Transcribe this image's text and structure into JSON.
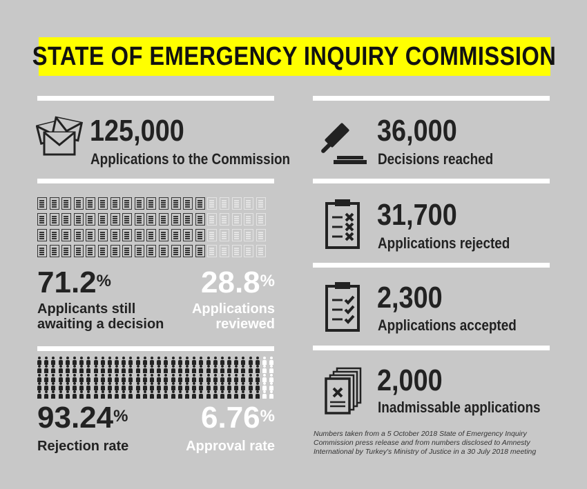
{
  "title": "STATE OF EMERGENCY INQUIRY COMMISSION",
  "left": {
    "applications": {
      "value": "125,000",
      "label": "Applications to the Commission",
      "icon": "envelopes-icon"
    },
    "pending": {
      "awaiting_pct": "71.2",
      "awaiting_label_1": "Applicants still",
      "awaiting_label_2": "awaiting a decision",
      "reviewed_pct": "28.8",
      "reviewed_label_1": "Applications",
      "reviewed_label_2": "reviewed",
      "awaiting_fraction": 0.712
    },
    "rates": {
      "rejection_pct": "93.24",
      "rejection_label": "Rejection rate",
      "approval_pct": "6.76",
      "approval_label": "Approval rate",
      "rejection_fraction": 0.9324
    },
    "percent_sign": "%"
  },
  "right": {
    "decisions": {
      "value": "36,000",
      "label": "Decisions reached",
      "icon": "gavel-icon"
    },
    "rejected": {
      "value": "31,700",
      "label": "Applications rejected",
      "icon": "clipboard-crosses-icon"
    },
    "accepted": {
      "value": "2,300",
      "label": "Applications accepted",
      "icon": "clipboard-checks-icon"
    },
    "inadmissible": {
      "value": "2,000",
      "label": "Inadmissable applications",
      "icon": "document-stack-icon"
    },
    "note_1": "Numbers taken from a 5 October 2018 State of Emergency Inquiry",
    "note_2": "Commission press release and from numbers disclosed to Amnesty",
    "note_3": "International by Turkey's Ministry of Justice in a 30 July 2018 meeting"
  }
}
